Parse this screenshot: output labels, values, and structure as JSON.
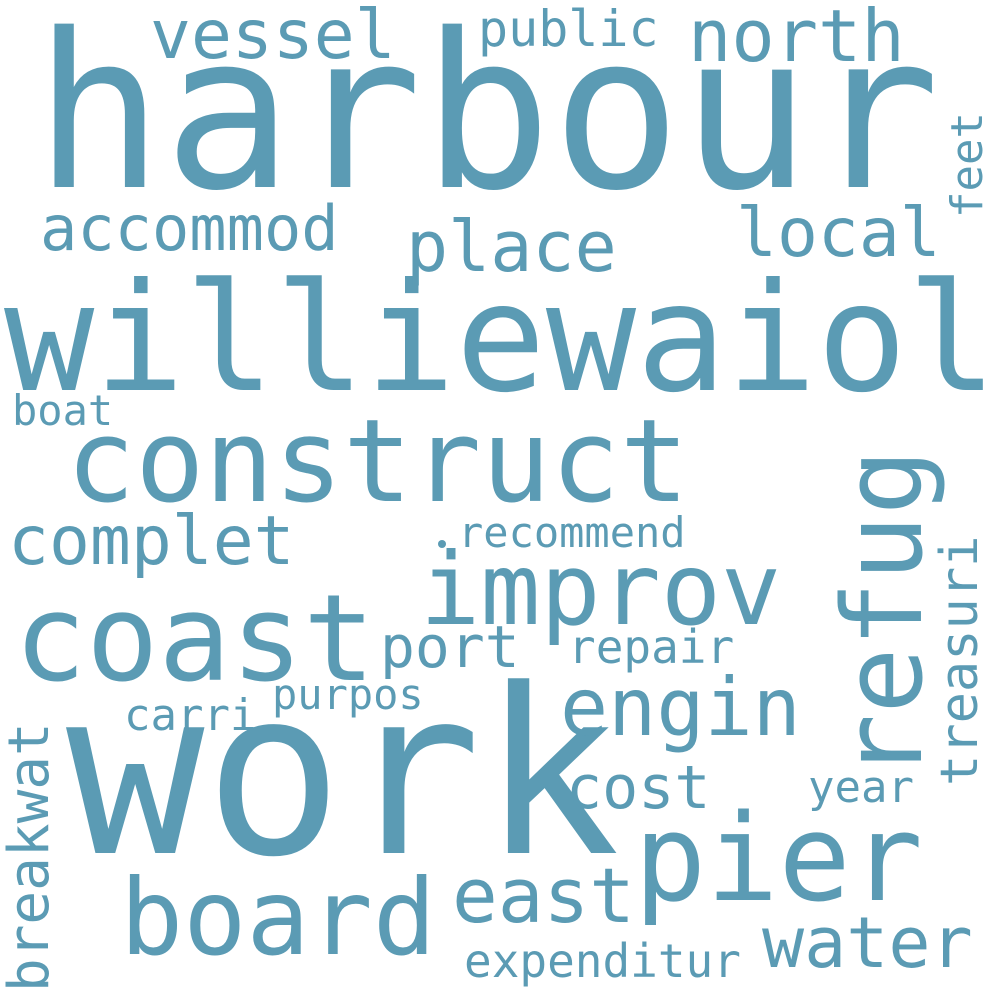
{
  "word_cloud": {
    "color": "#5b9bb4",
    "background": "#ffffff",
    "words": [
      {
        "key": "harbour",
        "text": "harbour"
      },
      {
        "key": "williewaiola",
        "text": "williewaiola"
      },
      {
        "key": "work",
        "text": "work"
      },
      {
        "key": "construct",
        "text": "construct"
      },
      {
        "key": "coast",
        "text": "coast"
      },
      {
        "key": "improv",
        "text": "improv"
      },
      {
        "key": "refug",
        "text": "refug"
      },
      {
        "key": "pier",
        "text": "pier"
      },
      {
        "key": "board",
        "text": "board"
      },
      {
        "key": "engin",
        "text": "engin"
      },
      {
        "key": "vessel",
        "text": "vessel"
      },
      {
        "key": "north",
        "text": "north"
      },
      {
        "key": "public",
        "text": "public"
      },
      {
        "key": "accommod",
        "text": "accommod"
      },
      {
        "key": "place",
        "text": "place"
      },
      {
        "key": "local",
        "text": "local"
      },
      {
        "key": "feet",
        "text": "feet"
      },
      {
        "key": "complet",
        "text": "complet"
      },
      {
        "key": "boat",
        "text": "boat"
      },
      {
        "key": "recommend",
        "text": "recommend"
      },
      {
        "key": "treasuri",
        "text": "treasuri"
      },
      {
        "key": "port",
        "text": "port"
      },
      {
        "key": "repair",
        "text": "repair"
      },
      {
        "key": "purpos",
        "text": "purpos"
      },
      {
        "key": "carri",
        "text": "carri"
      },
      {
        "key": "breakwat",
        "text": "breakwat"
      },
      {
        "key": "cost",
        "text": "cost"
      },
      {
        "key": "year",
        "text": "year"
      },
      {
        "key": "east",
        "text": "east"
      },
      {
        "key": "water",
        "text": "water"
      },
      {
        "key": "expenditur",
        "text": "expenditur"
      }
    ]
  }
}
